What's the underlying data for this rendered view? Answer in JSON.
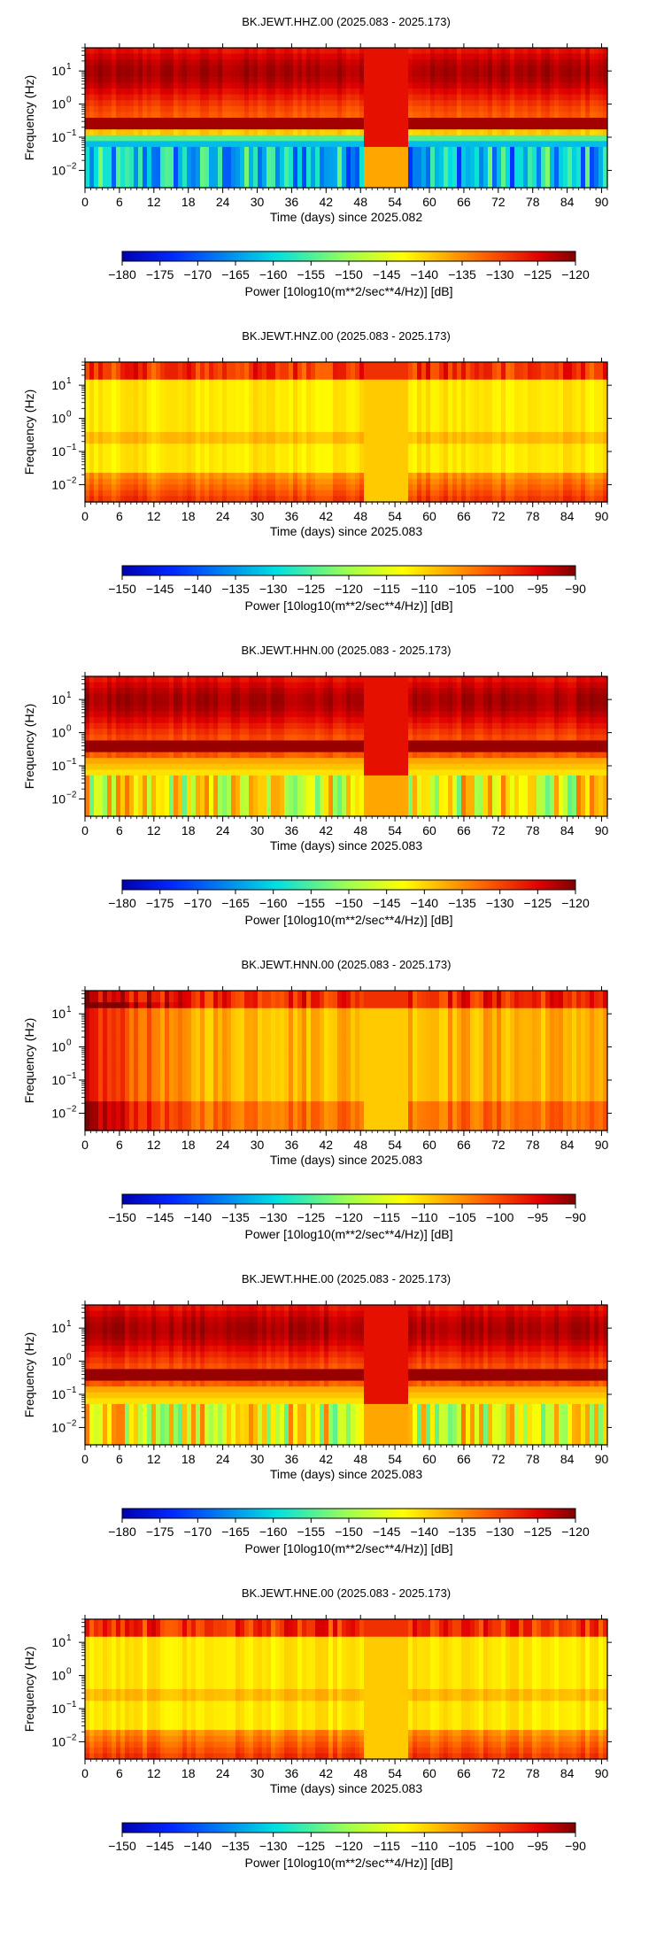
{
  "panels": [
    {
      "title": "BK.JEWT.HHZ.00 (2025.083 - 2025.173)",
      "ylabel": "Frequency (Hz)",
      "xlabel": "Time (days) since 2025.082",
      "colorbar_label": "Power [10log10(m**2/sec**4/Hz)] [dB]",
      "colorbar_ticks": [
        "−180",
        "−175",
        "−170",
        "−165",
        "−160",
        "−155",
        "−150",
        "−145",
        "−140",
        "−135",
        "−130",
        "−125",
        "−120"
      ],
      "colorbar_range": [
        -180,
        -120
      ],
      "profile": "strong"
    },
    {
      "title": "BK.JEWT.HNZ.00 (2025.083 - 2025.173)",
      "ylabel": "Frequency (Hz)",
      "xlabel": "Time (days) since 2025.083",
      "colorbar_label": "Power [10log10(m**2/sec**4/Hz)] [dB]",
      "colorbar_ticks": [
        "−150",
        "−145",
        "−140",
        "−135",
        "−130",
        "−125",
        "−120",
        "−115",
        "−110",
        "−105",
        "−100",
        "−95",
        "−90"
      ],
      "colorbar_range": [
        -150,
        -90
      ],
      "profile": "yellow"
    },
    {
      "title": "BK.JEWT.HHN.00 (2025.083 - 2025.173)",
      "ylabel": "Frequency (Hz)",
      "xlabel": "Time (days) since 2025.083",
      "colorbar_label": "Power [10log10(m**2/sec**4/Hz)] [dB]",
      "colorbar_ticks": [
        "−180",
        "−175",
        "−170",
        "−165",
        "−160",
        "−155",
        "−150",
        "−145",
        "−140",
        "−135",
        "−130",
        "−125",
        "−120"
      ],
      "colorbar_range": [
        -180,
        -120
      ],
      "profile": "mixed"
    },
    {
      "title": "BK.JEWT.HNN.00 (2025.083 - 2025.173)",
      "ylabel": "Frequency (Hz)",
      "xlabel": "Time (days) since 2025.083",
      "colorbar_label": "Power [10log10(m**2/sec**4/Hz)] [dB]",
      "colorbar_ticks": [
        "−150",
        "−145",
        "−140",
        "−135",
        "−130",
        "−125",
        "−120",
        "−115",
        "−110",
        "−105",
        "−100",
        "−95",
        "−90"
      ],
      "colorbar_range": [
        -150,
        -90
      ],
      "profile": "yellowred"
    },
    {
      "title": "BK.JEWT.HHE.00 (2025.083 - 2025.173)",
      "ylabel": "Frequency (Hz)",
      "xlabel": "Time (days) since 2025.083",
      "colorbar_label": "Power [10log10(m**2/sec**4/Hz)] [dB]",
      "colorbar_ticks": [
        "−180",
        "−175",
        "−170",
        "−165",
        "−160",
        "−155",
        "−150",
        "−145",
        "−140",
        "−135",
        "−130",
        "−125",
        "−120"
      ],
      "colorbar_range": [
        -180,
        -120
      ],
      "profile": "mixed"
    },
    {
      "title": "BK.JEWT.HNE.00 (2025.083 - 2025.173)",
      "ylabel": "Frequency (Hz)",
      "xlabel": "Time (days) since 2025.083",
      "colorbar_label": "Power [10log10(m**2/sec**4/Hz)] [dB]",
      "colorbar_ticks": [
        "−150",
        "−145",
        "−140",
        "−135",
        "−130",
        "−125",
        "−120",
        "−115",
        "−110",
        "−105",
        "−100",
        "−95",
        "−90"
      ],
      "colorbar_range": [
        -150,
        -90
      ],
      "profile": "yellow"
    }
  ],
  "x_ticks": [
    "0",
    "6",
    "12",
    "18",
    "24",
    "30",
    "36",
    "42",
    "48",
    "54",
    "60",
    "66",
    "72",
    "78",
    "84",
    "90"
  ],
  "y_ticks": [
    {
      "base": "10",
      "exp": "1"
    },
    {
      "base": "10",
      "exp": "0"
    },
    {
      "base": "10",
      "exp": "−1"
    },
    {
      "base": "10",
      "exp": "−2"
    }
  ],
  "chart_data": [
    {
      "type": "heatmap",
      "title": "BK.JEWT.HHZ.00 (2025.083 - 2025.173)",
      "xlabel": "Time (days) since 2025.082",
      "ylabel": "Frequency (Hz)",
      "xlim": [
        0,
        91
      ],
      "y_scale": "log",
      "ylim": [
        0.003,
        50
      ],
      "color_range": [
        -180,
        -120
      ],
      "colormap": "jet",
      "colorbar_label": "Power [10log10(m**2/sec**4/Hz)] [dB]"
    },
    {
      "type": "heatmap",
      "title": "BK.JEWT.HNZ.00 (2025.083 - 2025.173)",
      "xlabel": "Time (days) since 2025.083",
      "ylabel": "Frequency (Hz)",
      "xlim": [
        0,
        91
      ],
      "y_scale": "log",
      "ylim": [
        0.003,
        50
      ],
      "color_range": [
        -150,
        -90
      ],
      "colormap": "jet",
      "colorbar_label": "Power [10log10(m**2/sec**4/Hz)] [dB]"
    },
    {
      "type": "heatmap",
      "title": "BK.JEWT.HHN.00 (2025.083 - 2025.173)",
      "xlabel": "Time (days) since 2025.083",
      "ylabel": "Frequency (Hz)",
      "xlim": [
        0,
        91
      ],
      "y_scale": "log",
      "ylim": [
        0.003,
        50
      ],
      "color_range": [
        -180,
        -120
      ],
      "colormap": "jet",
      "colorbar_label": "Power [10log10(m**2/sec**4/Hz)] [dB]"
    },
    {
      "type": "heatmap",
      "title": "BK.JEWT.HNN.00 (2025.083 - 2025.173)",
      "xlabel": "Time (days) since 2025.083",
      "ylabel": "Frequency (Hz)",
      "xlim": [
        0,
        91
      ],
      "y_scale": "log",
      "ylim": [
        0.003,
        50
      ],
      "color_range": [
        -150,
        -90
      ],
      "colormap": "jet",
      "colorbar_label": "Power [10log10(m**2/sec**4/Hz)] [dB]"
    },
    {
      "type": "heatmap",
      "title": "BK.JEWT.HHE.00 (2025.083 - 2025.173)",
      "xlabel": "Time (days) since 2025.083",
      "ylabel": "Frequency (Hz)",
      "xlim": [
        0,
        91
      ],
      "y_scale": "log",
      "ylim": [
        0.003,
        50
      ],
      "color_range": [
        -180,
        -120
      ],
      "colormap": "jet",
      "colorbar_label": "Power [10log10(m**2/sec**4/Hz)] [dB]"
    },
    {
      "type": "heatmap",
      "title": "BK.JEWT.HNE.00 (2025.083 - 2025.173)",
      "xlabel": "Time (days) since 2025.083",
      "ylabel": "Frequency (Hz)",
      "xlim": [
        0,
        91
      ],
      "y_scale": "log",
      "ylim": [
        0.003,
        50
      ],
      "color_range": [
        -150,
        -90
      ],
      "colormap": "jet",
      "colorbar_label": "Power [10log10(m**2/sec**4/Hz)] [dB]"
    }
  ]
}
